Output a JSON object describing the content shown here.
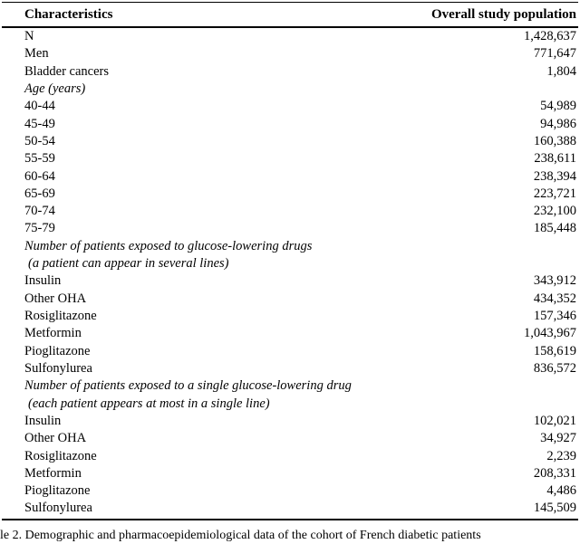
{
  "accent_colors": {
    "text": "#000000",
    "background": "#ffffff",
    "rule": "#000000"
  },
  "table": {
    "columns": {
      "characteristics": "Characteristics",
      "population": "Overall study population"
    },
    "rows": [
      {
        "label": "N",
        "value": "1,428,637",
        "style": "normal"
      },
      {
        "label": "Men",
        "value": "771,647",
        "style": "normal"
      },
      {
        "label": "Bladder cancers",
        "value": "1,804",
        "style": "normal"
      },
      {
        "label": "Age (years)",
        "value": "",
        "style": "section"
      },
      {
        "label": "40-44",
        "value": "54,989",
        "style": "normal"
      },
      {
        "label": "45-49",
        "value": "94,986",
        "style": "normal"
      },
      {
        "label": "50-54",
        "value": "160,388",
        "style": "normal"
      },
      {
        "label": "55-59",
        "value": "238,611",
        "style": "normal"
      },
      {
        "label": "60-64",
        "value": "238,394",
        "style": "normal"
      },
      {
        "label": "65-69",
        "value": "223,721",
        "style": "normal"
      },
      {
        "label": "70-74",
        "value": "232,100",
        "style": "normal"
      },
      {
        "label": "75-79",
        "value": "185,448",
        "style": "normal"
      },
      {
        "label": "Number of patients exposed to glucose-lowering drugs",
        "value": "",
        "style": "section"
      },
      {
        "label": "(a patient can appear in several lines)",
        "value": "",
        "style": "section-indent"
      },
      {
        "label": "Insulin",
        "value": "343,912",
        "style": "normal"
      },
      {
        "label": "Other OHA",
        "value": "434,352",
        "style": "normal"
      },
      {
        "label": "Rosiglitazone",
        "value": "157,346",
        "style": "normal"
      },
      {
        "label": "Metformin",
        "value": "1,043,967",
        "style": "normal"
      },
      {
        "label": "Pioglitazone",
        "value": "158,619",
        "style": "normal"
      },
      {
        "label": "Sulfonylurea",
        "value": "836,572",
        "style": "normal"
      },
      {
        "label": "Number of patients exposed to a single glucose-lowering drug",
        "value": "",
        "style": "section"
      },
      {
        "label": "(each patient appears at most in a single line)",
        "value": "",
        "style": "section-indent"
      },
      {
        "label": "Insulin",
        "value": "102,021",
        "style": "normal"
      },
      {
        "label": "Other OHA",
        "value": "34,927",
        "style": "normal"
      },
      {
        "label": "Rosiglitazone",
        "value": "2,239",
        "style": "normal"
      },
      {
        "label": "Metformin",
        "value": "208,331",
        "style": "normal"
      },
      {
        "label": "Pioglitazone",
        "value": "4,486",
        "style": "normal"
      },
      {
        "label": "Sulfonylurea",
        "value": "145,509",
        "style": "normal"
      }
    ]
  },
  "caption": {
    "fragment": "le 2.  Demographic and pharmacoepidemiological data of the cohort of French diabetic patients"
  }
}
